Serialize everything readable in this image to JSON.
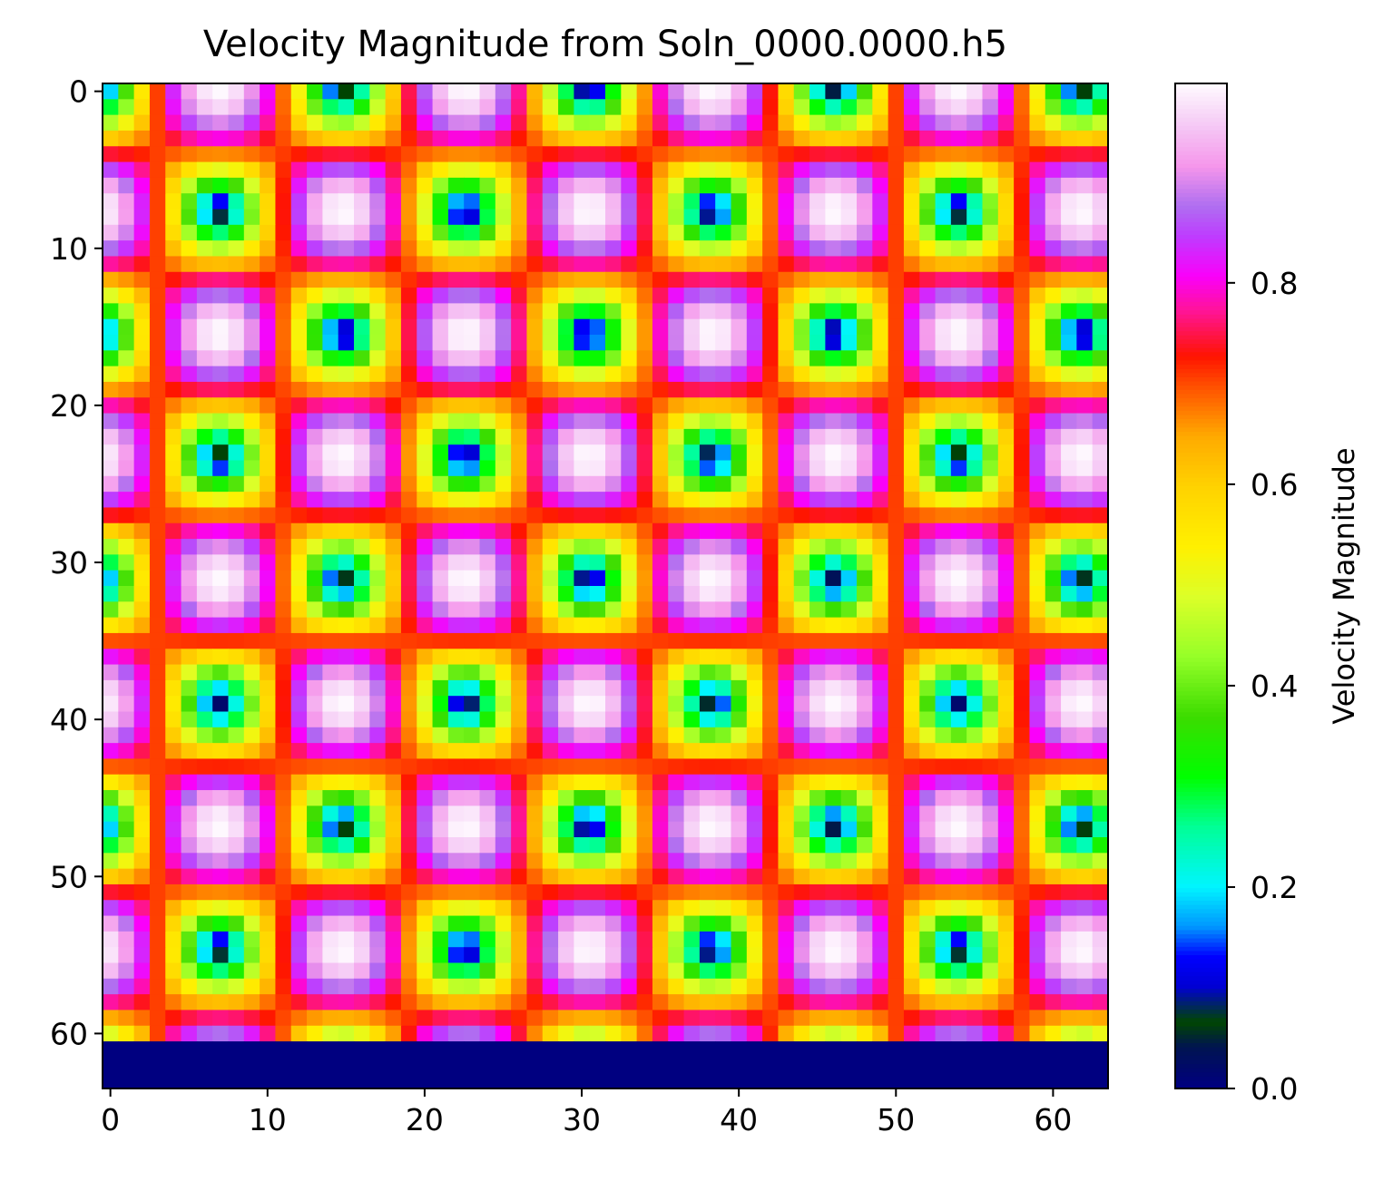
{
  "chart_data": {
    "type": "heatmap",
    "title": "Velocity Magnitude from Soln_0000.0000.h5",
    "colormap": "gist_ncar",
    "grid": false,
    "x_ticks": [
      "0",
      "10",
      "20",
      "30",
      "40",
      "50",
      "60"
    ],
    "y_ticks": [
      "0",
      "10",
      "20",
      "30",
      "40",
      "50",
      "60"
    ],
    "xlim": [
      -0.5,
      63.5
    ],
    "ylim": [
      63.5,
      -0.5
    ],
    "shape": [
      64,
      64
    ],
    "field": {
      "formula": "sqrt(sin(pi*x/cell)^2*cos(pi*y/cell)^2 + cos(pi*x/cell)^2*sin(pi*y/cell)^2)",
      "cell_size": 15.67,
      "x_offset": 0.92,
      "y_offset": 0.2,
      "zero_rows_from": 61
    },
    "colorbar": {
      "label": "Velocity Magnitude",
      "ticks": [
        "0.0",
        "0.2",
        "0.4",
        "0.6",
        "0.8"
      ],
      "range": [
        0.0,
        0.998
      ]
    }
  }
}
